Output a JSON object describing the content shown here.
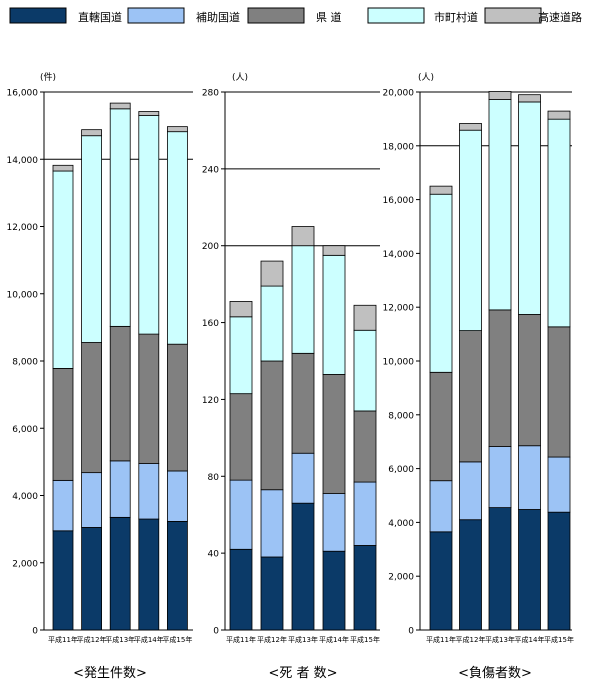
{
  "legend": [
    {
      "label": "直轄国道",
      "color": "#0b3a68"
    },
    {
      "label": "補助国道",
      "color": "#9cc3f5"
    },
    {
      "label": "県 道",
      "color": "#808080"
    },
    {
      "label": "市町村道",
      "color": "#ccffff"
    },
    {
      "label": "高速道路",
      "color": "#c0c0c0"
    }
  ],
  "chart_data": [
    {
      "type": "bar",
      "stacked": true,
      "title": "<発生件数>",
      "unit": "(件)",
      "categories": [
        "平成11年",
        "平成12年",
        "平成13年",
        "平成14年",
        "平成15年"
      ],
      "ylim": [
        0,
        16000
      ],
      "yticks": [
        "0",
        "2,000",
        "4,000",
        "6,000",
        "8,000",
        "10,000",
        "12,000",
        "14,000",
        "16,000"
      ],
      "gridlines": [
        14000,
        16000
      ],
      "series": [
        {
          "name": "直轄国道",
          "values": [
            2950,
            3050,
            3350,
            3300,
            3230
          ]
        },
        {
          "name": "補助国道",
          "values": [
            1500,
            1630,
            1680,
            1650,
            1500
          ]
        },
        {
          "name": "県 道",
          "values": [
            3330,
            3870,
            4000,
            3850,
            3770
          ]
        },
        {
          "name": "市町村道",
          "values": [
            5870,
            6150,
            6470,
            6500,
            6320
          ]
        },
        {
          "name": "高速道路",
          "values": [
            170,
            180,
            170,
            120,
            150
          ]
        }
      ]
    },
    {
      "type": "bar",
      "stacked": true,
      "title": "<死 者 数>",
      "unit": "(人)",
      "categories": [
        "平成11年",
        "平成12年",
        "平成13年",
        "平成14年",
        "平成15年"
      ],
      "ylim": [
        0,
        280
      ],
      "yticks": [
        "0",
        "40",
        "80",
        "120",
        "160",
        "200",
        "240",
        "280"
      ],
      "gridlines": [
        200,
        240,
        280
      ],
      "series": [
        {
          "name": "直轄国道",
          "values": [
            42,
            38,
            66,
            41,
            44
          ]
        },
        {
          "name": "補助国道",
          "values": [
            36,
            35,
            26,
            30,
            33
          ]
        },
        {
          "name": "県 道",
          "values": [
            45,
            67,
            52,
            62,
            37
          ]
        },
        {
          "name": "市町村道",
          "values": [
            40,
            39,
            56,
            62,
            42
          ]
        },
        {
          "name": "高速道路",
          "values": [
            8,
            13,
            10,
            5,
            13
          ]
        }
      ]
    },
    {
      "type": "bar",
      "stacked": true,
      "title": "<負傷者数>",
      "unit": "(人)",
      "categories": [
        "平成11年",
        "平成12年",
        "平成13年",
        "平成14年",
        "平成15年"
      ],
      "ylim": [
        0,
        20000
      ],
      "yticks": [
        "0",
        "2,000",
        "4,000",
        "6,000",
        "8,000",
        "10,000",
        "12,000",
        "14,000",
        "16,000",
        "18,000",
        "20,000"
      ],
      "gridlines": [
        18000,
        20000
      ],
      "series": [
        {
          "name": "直轄国道",
          "values": [
            3650,
            4100,
            4550,
            4480,
            4380
          ]
        },
        {
          "name": "補助国道",
          "values": [
            1900,
            2150,
            2270,
            2370,
            2050
          ]
        },
        {
          "name": "県 道",
          "values": [
            4030,
            4880,
            5080,
            4880,
            4840
          ]
        },
        {
          "name": "市町村道",
          "values": [
            6620,
            7450,
            7820,
            7900,
            7720
          ]
        },
        {
          "name": "高速道路",
          "values": [
            300,
            250,
            300,
            270,
            300
          ]
        }
      ]
    }
  ]
}
